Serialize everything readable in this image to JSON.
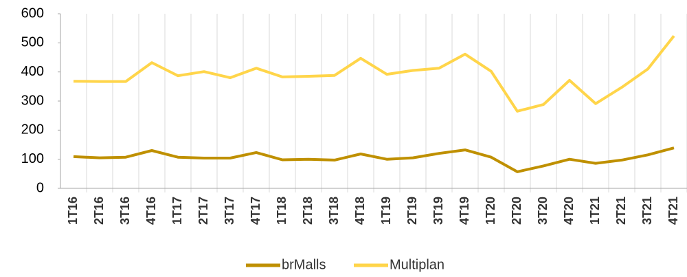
{
  "chart_data": {
    "type": "line",
    "categories": [
      "1T16",
      "2T16",
      "3T16",
      "4T16",
      "1T17",
      "2T17",
      "3T17",
      "4T17",
      "1T18",
      "2T18",
      "3T18",
      "4T18",
      "1T19",
      "2T19",
      "3T19",
      "4T19",
      "1T20",
      "2T20",
      "3T20",
      "4T20",
      "1T21",
      "2T21",
      "3T21",
      "4T21"
    ],
    "series": [
      {
        "name": "brMalls",
        "color": "#bf9000",
        "values": [
          109,
          105,
          107,
          130,
          107,
          104,
          104,
          123,
          98,
          100,
          97,
          118,
          100,
          105,
          120,
          132,
          107,
          57,
          77,
          100,
          86,
          97,
          115,
          139
        ]
      },
      {
        "name": "Multiplan",
        "color": "#ffd54a",
        "values": [
          368,
          367,
          367,
          432,
          387,
          401,
          380,
          413,
          383,
          385,
          388,
          447,
          392,
          405,
          413,
          461,
          402,
          265,
          288,
          371,
          291,
          347,
          410,
          524
        ]
      }
    ],
    "ylim": [
      0,
      600
    ],
    "yticks": [
      0,
      100,
      200,
      300,
      400,
      500,
      600
    ],
    "grid": true,
    "legend": "bottom"
  }
}
